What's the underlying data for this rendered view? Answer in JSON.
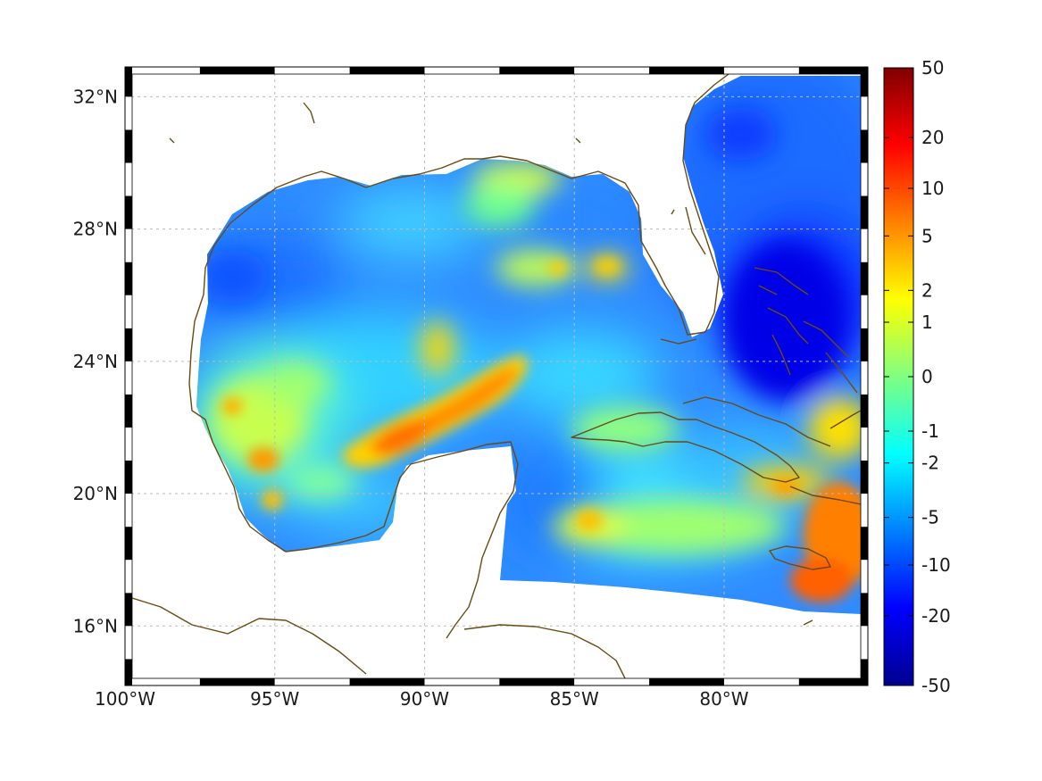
{
  "chart_data": {
    "type": "heatmap",
    "map_extent": {
      "lon": [
        -100,
        -75.2
      ],
      "lat": [
        14.2,
        32.9
      ]
    },
    "x_ticks": [
      {
        "value": -100,
        "label": "100°W"
      },
      {
        "value": -95,
        "label": "95°W"
      },
      {
        "value": -90,
        "label": "90°W"
      },
      {
        "value": -85,
        "label": "85°W"
      },
      {
        "value": -80,
        "label": "80°W"
      }
    ],
    "y_ticks": [
      {
        "value": 32,
        "label": "32°N"
      },
      {
        "value": 28,
        "label": "28°N"
      },
      {
        "value": 24,
        "label": "24°N"
      },
      {
        "value": 20,
        "label": "20°N"
      },
      {
        "value": 16,
        "label": "16°N"
      }
    ],
    "grid": true,
    "colorbar": {
      "position": "right",
      "range": [
        -50,
        50
      ],
      "scale": "symmetric-log",
      "ticks": [
        {
          "value": 50,
          "label": "50"
        },
        {
          "value": 20,
          "label": "20"
        },
        {
          "value": 10,
          "label": "10"
        },
        {
          "value": 5,
          "label": "5"
        },
        {
          "value": 2,
          "label": "2"
        },
        {
          "value": 1,
          "label": "1"
        },
        {
          "value": 0,
          "label": "0"
        },
        {
          "value": -1,
          "label": "-1"
        },
        {
          "value": -2,
          "label": "-2"
        },
        {
          "value": -5,
          "label": "-5"
        },
        {
          "value": -10,
          "label": "-10"
        },
        {
          "value": -20,
          "label": "-20"
        },
        {
          "value": -50,
          "label": "-50"
        }
      ],
      "colormap": [
        "#00008f",
        "#0000ff",
        "#0080ff",
        "#00ffff",
        "#80ff80",
        "#ffff00",
        "#ff8000",
        "#ff0000",
        "#800000"
      ]
    },
    "colors": {
      "coastline": "#6b4a12",
      "grid": "#bbbbbb",
      "frame_dark": "#000000",
      "frame_light": "#ffffff"
    },
    "features": [
      {
        "name_internal": "band",
        "lon": -88.8,
        "lat": 22.8,
        "value": 5
      },
      {
        "name_internal": "jamaica-south",
        "lon": -76.2,
        "lat": 17.6,
        "value": 6
      },
      {
        "name_internal": "bahamas",
        "lon": -76.5,
        "lat": 25.5,
        "value": -15
      },
      {
        "name_internal": "atlantic-north",
        "lon": -78.5,
        "lat": 31.0,
        "value": -5
      },
      {
        "name_internal": "nw-gulf",
        "lon": -96.0,
        "lat": 26.8,
        "value": -5
      },
      {
        "name_internal": "west-gulf",
        "lon": -95.5,
        "lat": 22.5,
        "value": 1.5
      },
      {
        "name_internal": "bay-of-campeche-spot",
        "lon": -95.2,
        "lat": 21.2,
        "value": 4
      },
      {
        "name_internal": "north-central",
        "lon": -87.5,
        "lat": 29.4,
        "value": 1.5
      },
      {
        "name_internal": "caribbean-yellow",
        "lon": -82.0,
        "lat": 18.8,
        "value": 1.5
      },
      {
        "name_internal": "hispaniola-west",
        "lon": -77.2,
        "lat": 20.5,
        "value": 3
      }
    ]
  }
}
